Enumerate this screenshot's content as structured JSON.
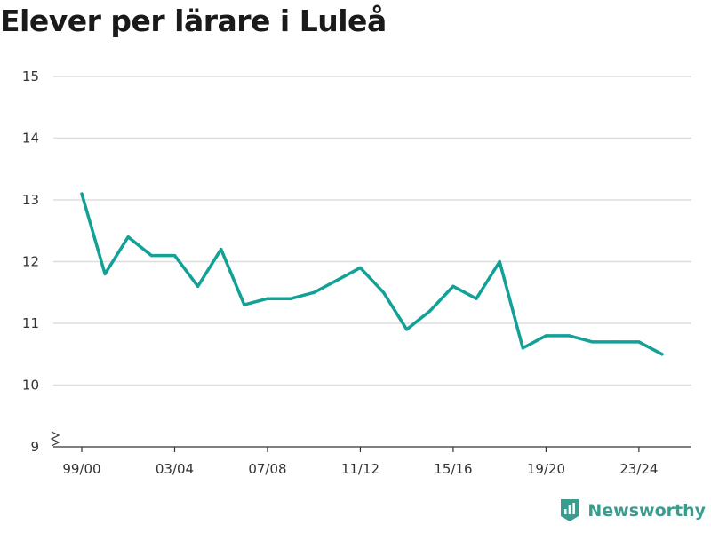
{
  "title": "Elever per lärare i Luleå",
  "brand": {
    "name": "Newsworthy",
    "icon": "newsworthy-logo-icon"
  },
  "colors": {
    "line": "#12a197",
    "grid": "#dddddd",
    "axis": "#333333",
    "brand": "#3a9c8f"
  },
  "chart_data": {
    "type": "line",
    "title": "Elever per lärare i Luleå",
    "xlabel": "",
    "ylabel": "",
    "x": [
      "99/00",
      "00/01",
      "01/02",
      "02/03",
      "03/04",
      "04/05",
      "05/06",
      "06/07",
      "07/08",
      "08/09",
      "09/10",
      "10/11",
      "11/12",
      "12/13",
      "13/14",
      "14/15",
      "15/16",
      "16/17",
      "17/18",
      "18/19",
      "19/20",
      "20/21",
      "21/22",
      "22/23",
      "23/24",
      "24/25"
    ],
    "x_tick_labels": [
      "99/00",
      "03/04",
      "07/08",
      "11/12",
      "15/16",
      "19/20",
      "23/24"
    ],
    "y_ticks": [
      9,
      10,
      11,
      12,
      13,
      14,
      15
    ],
    "ylim": [
      9,
      15
    ],
    "y_axis_break": true,
    "grid": "horizontal",
    "series": [
      {
        "values": [
          13.1,
          11.8,
          12.4,
          12.1,
          12.1,
          11.6,
          12.2,
          11.3,
          11.4,
          11.4,
          11.5,
          11.7,
          11.9,
          11.5,
          10.9,
          11.2,
          11.6,
          11.4,
          12.0,
          10.6,
          10.8,
          10.8,
          10.7,
          10.7,
          10.7,
          10.5
        ]
      }
    ]
  }
}
